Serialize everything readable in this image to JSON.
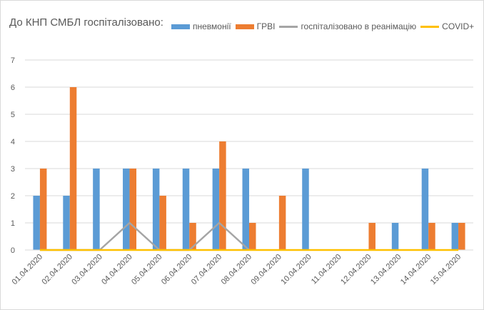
{
  "chart_data": {
    "type": "bar",
    "title": "До КНП СМБЛ госпіталізовано:",
    "xlabel": "",
    "ylabel": "",
    "categories": [
      "01.04.2020",
      "02.04.2020",
      "03.04.2020",
      "04.04.2020",
      "05.04.2020",
      "06.04.2020",
      "07.04.2020",
      "08.04.2020",
      "09.04.2020",
      "10.04.2020",
      "11.04.2020",
      "12.04.2020",
      "13.04.2020",
      "14.04.2020",
      "15.04.2020"
    ],
    "ylim": [
      0,
      7
    ],
    "yticks": [
      0,
      1,
      2,
      3,
      4,
      5,
      6,
      7
    ],
    "grid": true,
    "legend_position": "top",
    "series": [
      {
        "name": "пневмонії",
        "kind": "bar",
        "color": "#5b9bd5",
        "values": [
          2,
          2,
          3,
          3,
          3,
          3,
          3,
          3,
          0,
          3,
          0,
          0,
          1,
          3,
          1
        ]
      },
      {
        "name": "ГРВІ",
        "kind": "bar",
        "color": "#ed7d31",
        "values": [
          3,
          6,
          0,
          3,
          2,
          1,
          4,
          1,
          2,
          0,
          0,
          1,
          0,
          1,
          1
        ]
      },
      {
        "name": "госпіталізовано в реанімацію",
        "kind": "line",
        "color": "#a5a5a5",
        "values": [
          0,
          0,
          0,
          1,
          0,
          0,
          1,
          0,
          null,
          null,
          null,
          null,
          null,
          null,
          null
        ]
      },
      {
        "name": "COVID+",
        "kind": "line",
        "color": "#ffc000",
        "values": [
          0,
          0,
          0,
          0,
          0,
          0,
          0,
          0,
          0,
          0,
          0,
          0,
          0,
          0,
          0
        ]
      }
    ]
  }
}
